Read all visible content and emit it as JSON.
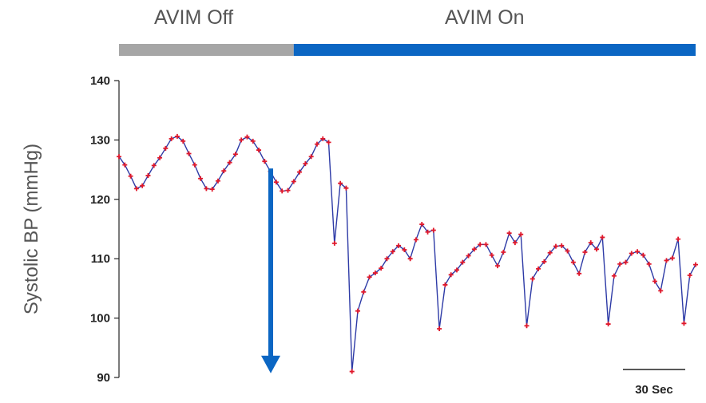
{
  "chart_data": {
    "type": "line",
    "ylabel": "Systolic BP (mmHg)",
    "ylim": [
      90,
      140
    ],
    "yticks": [
      90,
      100,
      110,
      120,
      130,
      140
    ],
    "phases": [
      {
        "label": "AVIM Off",
        "color": "#a6a6a6",
        "start_index": 0,
        "end_index": 30
      },
      {
        "label": "AVIM On",
        "color": "#0b66c3",
        "start_index": 30,
        "end_index": 99
      }
    ],
    "annotations": {
      "arrow": {
        "direction": "down",
        "from_y": 125.2,
        "to_y": 90.7,
        "color": "#0b66c3"
      },
      "scale_bar_label": "30 Sec"
    },
    "series": [
      {
        "line_color": "#2d3aa6",
        "marker_color": "#e0182b",
        "x": [
          0,
          1,
          2,
          3,
          4,
          5,
          6,
          7,
          8,
          9,
          10,
          11,
          12,
          13,
          14,
          15,
          16,
          17,
          18,
          19,
          20,
          21,
          22,
          23,
          24,
          25,
          26,
          27,
          28,
          29,
          30,
          31,
          32,
          33,
          34,
          35,
          36,
          37,
          38,
          39,
          40,
          41,
          42,
          43,
          44,
          45,
          46,
          47,
          48,
          49,
          50,
          51,
          52,
          53,
          54,
          55,
          56,
          57,
          58,
          59,
          60,
          61,
          62,
          63,
          64,
          65,
          66,
          67,
          68,
          69,
          70,
          71,
          72,
          73,
          74,
          75,
          76,
          77,
          78,
          79,
          80,
          81,
          82,
          83,
          84,
          85,
          86,
          87,
          88,
          89,
          90,
          91,
          92,
          93,
          94,
          95,
          96,
          97,
          98,
          99
        ],
        "values": [
          127.2,
          125.8,
          123.9,
          121.8,
          122.3,
          124.0,
          125.7,
          127.0,
          128.6,
          130.2,
          130.6,
          129.8,
          127.7,
          125.8,
          123.5,
          121.8,
          121.7,
          123.1,
          124.8,
          126.2,
          127.6,
          130.0,
          130.5,
          129.8,
          128.3,
          126.4,
          124.7,
          122.9,
          121.4,
          121.5,
          123.0,
          124.6,
          126.0,
          127.2,
          129.3,
          130.2,
          129.6,
          112.6,
          122.7,
          121.9,
          91.0,
          101.2,
          104.4,
          106.9,
          107.6,
          108.4,
          110.0,
          111.2,
          112.2,
          111.5,
          110.0,
          113.2,
          115.8,
          114.5,
          114.8,
          98.2,
          105.6,
          107.3,
          108.1,
          109.4,
          110.5,
          111.6,
          112.4,
          112.4,
          110.6,
          108.8,
          111.1,
          114.3,
          112.7,
          114.1,
          98.7,
          106.6,
          108.3,
          109.5,
          111.0,
          112.1,
          112.2,
          111.3,
          109.4,
          107.5,
          111.1,
          112.7,
          111.6,
          113.6,
          99.0,
          107.1,
          109.1,
          109.4,
          110.9,
          111.2,
          110.6,
          109.1,
          106.2,
          104.6,
          109.7,
          110.1,
          113.3,
          99.1,
          107.2,
          109.0
        ]
      }
    ]
  }
}
